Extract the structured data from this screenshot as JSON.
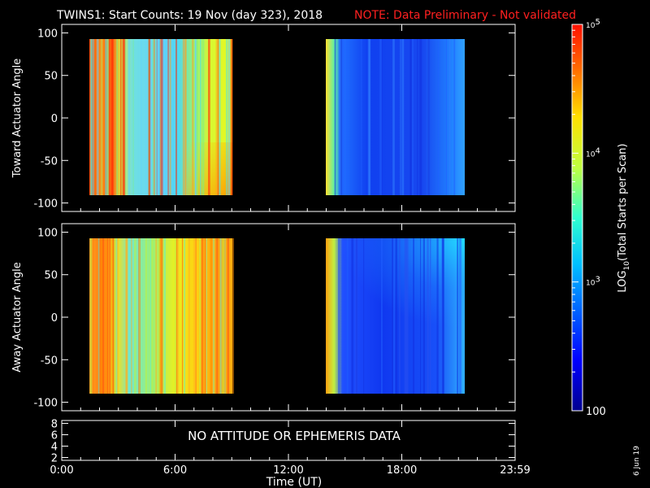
{
  "title": {
    "main": "TWINS1: Start Counts: 19 Nov (day 323), 2018",
    "note": "NOTE: Data Preliminary - Not validated"
  },
  "chart_data": [
    {
      "type": "heatmap",
      "ylabel": "Toward Actuator Angle",
      "ylim": [
        -110,
        110
      ],
      "yticks": [
        100,
        50,
        0,
        -50,
        -100
      ],
      "xlim": [
        0,
        24
      ],
      "data_time_ranges_hours": [
        [
          1.0,
          8.6
        ],
        [
          13.7,
          20.8
        ]
      ],
      "angle_range": [
        -88,
        90
      ]
    },
    {
      "type": "heatmap",
      "ylabel": "Away Actuator Angle",
      "ylim": [
        -110,
        110
      ],
      "yticks": [
        100,
        50,
        0,
        -50,
        -100
      ],
      "xlim": [
        0,
        24
      ],
      "data_time_ranges_hours": [
        [
          1.0,
          8.6
        ],
        [
          13.7,
          20.8
        ]
      ],
      "angle_range": [
        -88,
        90
      ]
    },
    {
      "type": "line",
      "ylim": [
        1.5,
        8.5
      ],
      "yticks": [
        8,
        6,
        4,
        2
      ],
      "message": "NO ATTITUDE OR EPHEMERIS DATA",
      "xlabel": "Time (UT)",
      "xticks": [
        "0:00",
        "6:00",
        "12:00",
        "18:00",
        "23:59"
      ],
      "xtick_hours": [
        0,
        6,
        12,
        18,
        24
      ]
    }
  ],
  "colorbar": {
    "label": "LOG10(Total Starts per Scan)",
    "label_main": "LOG",
    "label_sub": "10",
    "label_rest": "(Total Starts per Scan)",
    "scale": "log",
    "range": [
      100,
      100000
    ],
    "ticks": [
      {
        "value": 100,
        "label": "100"
      },
      {
        "value": 1000,
        "base": "10",
        "exp": "3"
      },
      {
        "value": 10000,
        "base": "10",
        "exp": "4"
      },
      {
        "value": 100000,
        "base": "10",
        "exp": "5"
      }
    ]
  },
  "date_stamp": "6 Jun 19"
}
